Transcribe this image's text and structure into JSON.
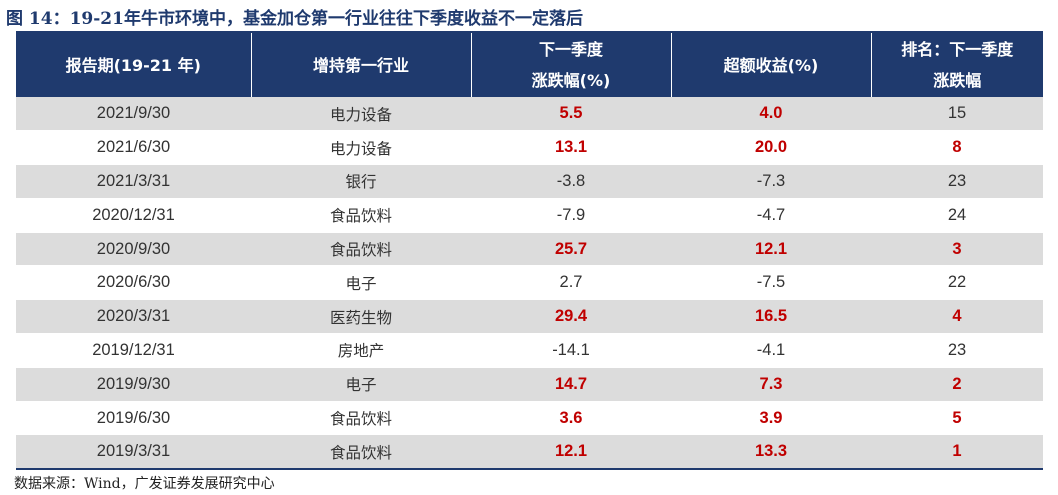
{
  "figure": {
    "title": "图 14：19-21年牛市环境中，基金加仓第一行业往往下季度收益不一定落后",
    "source": "数据来源：Wind，广发证券发展研究中心"
  },
  "table": {
    "headers": [
      {
        "line1": "报告期(19-21 年)",
        "line2": ""
      },
      {
        "line1": "增持第一行业",
        "line2": ""
      },
      {
        "line1": "下一季度",
        "line2": "涨跌幅(%)"
      },
      {
        "line1": "超额收益(%)",
        "line2": ""
      },
      {
        "line1": "排名：下一季度",
        "line2": "涨跌幅"
      }
    ],
    "rows": [
      {
        "period": "2021/9/30",
        "industry": "电力设备",
        "change": "5.5",
        "excess": "4.0",
        "rank": "15"
      },
      {
        "period": "2021/6/30",
        "industry": "电力设备",
        "change": "13.1",
        "excess": "20.0",
        "rank": "8"
      },
      {
        "period": "2021/3/31",
        "industry": "银行",
        "change": "-3.8",
        "excess": "-7.3",
        "rank": "23"
      },
      {
        "period": "2020/12/31",
        "industry": "食品饮料",
        "change": "-7.9",
        "excess": "-4.7",
        "rank": "24"
      },
      {
        "period": "2020/9/30",
        "industry": "食品饮料",
        "change": "25.7",
        "excess": "12.1",
        "rank": "3"
      },
      {
        "period": "2020/6/30",
        "industry": "电子",
        "change": "2.7",
        "excess": "-7.5",
        "rank": "22"
      },
      {
        "period": "2020/3/31",
        "industry": "医药生物",
        "change": "29.4",
        "excess": "16.5",
        "rank": "4"
      },
      {
        "period": "2019/12/31",
        "industry": "房地产",
        "change": "-14.1",
        "excess": "-4.1",
        "rank": "23"
      },
      {
        "period": "2019/9/30",
        "industry": "电子",
        "change": "14.7",
        "excess": "7.3",
        "rank": "2"
      },
      {
        "period": "2019/6/30",
        "industry": "食品饮料",
        "change": "3.6",
        "excess": "3.9",
        "rank": "5"
      },
      {
        "period": "2019/3/31",
        "industry": "食品饮料",
        "change": "12.1",
        "excess": "13.3",
        "rank": "1"
      }
    ]
  },
  "colors": {
    "header_bg": "#1f3a6e",
    "highlight_text": "#c00000",
    "stripe_bg": "#dcdcdc"
  }
}
